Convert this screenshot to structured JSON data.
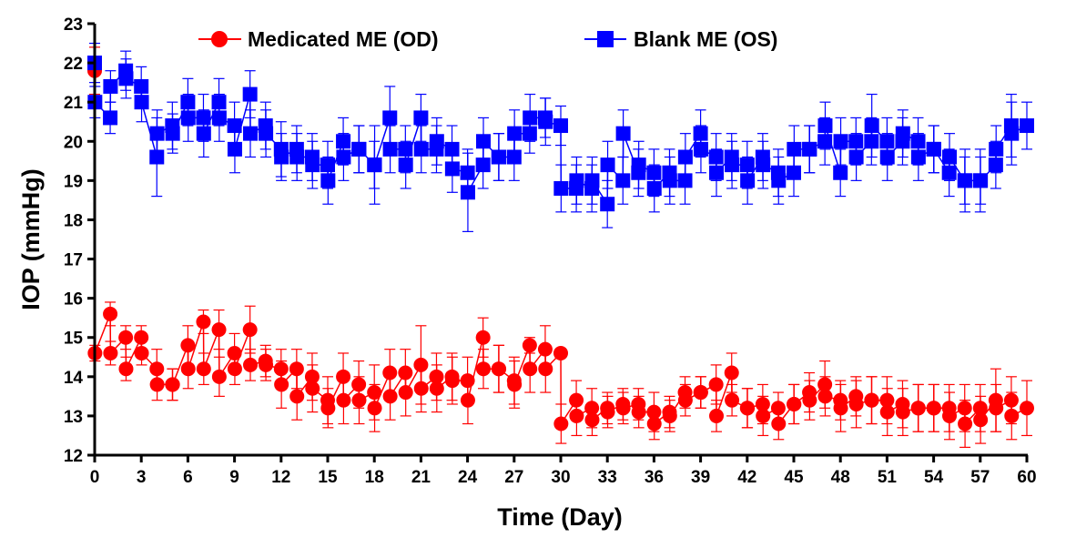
{
  "chart_data": {
    "type": "line",
    "title": "",
    "xlabel": "Time (Day)",
    "ylabel": "IOP (mmHg)",
    "xlim": [
      0,
      60
    ],
    "ylim": [
      12,
      23
    ],
    "xticks": [
      0,
      3,
      6,
      9,
      12,
      15,
      18,
      21,
      24,
      27,
      30,
      33,
      36,
      39,
      42,
      45,
      48,
      51,
      54,
      57,
      60
    ],
    "yticks": [
      12,
      13,
      14,
      15,
      16,
      17,
      18,
      19,
      20,
      21,
      22,
      23
    ],
    "grid": false,
    "legend": "top",
    "series": [
      {
        "name": "Medicated ME (OD)",
        "color": "#ff0000",
        "marker": "circle",
        "x": [
          0,
          0.02,
          1,
          1.02,
          2,
          2.02,
          3,
          3.02,
          4,
          4.02,
          5,
          5.02,
          6,
          6.02,
          7,
          7.02,
          8,
          8.02,
          9,
          9.02,
          10,
          10.02,
          11,
          11.02,
          12,
          12.02,
          13,
          13.02,
          14,
          14.02,
          15,
          15.02,
          16,
          16.02,
          17,
          17.02,
          18,
          18.02,
          19,
          19.02,
          20,
          20.02,
          21,
          21.02,
          22,
          22.02,
          23,
          23.02,
          24,
          24.02,
          25,
          25.02,
          26,
          26.02,
          27,
          27.02,
          28,
          28.02,
          29,
          29.02,
          30,
          30.02,
          31,
          31.02,
          32,
          32.02,
          33,
          33.02,
          34,
          34.02,
          35,
          35.02,
          36,
          36.02,
          37,
          37.02,
          38,
          38.02,
          39,
          39.02,
          40,
          40.02,
          41,
          41.02,
          42,
          42.02,
          43,
          43.02,
          44,
          44.02,
          45,
          45.02,
          46,
          46.02,
          47,
          47.02,
          48,
          48.02,
          49,
          49.02,
          50,
          50.02,
          51,
          51.02,
          52,
          52.02,
          53,
          53.02,
          54,
          54.02,
          55,
          55.02,
          56,
          56.02,
          57,
          57.02,
          58,
          58.02,
          59,
          59.02,
          60
        ],
        "y": [
          21.8,
          14.6,
          15.6,
          14.6,
          15.0,
          14.2,
          15.0,
          14.6,
          14.2,
          13.8,
          13.8,
          13.8,
          14.8,
          14.2,
          15.4,
          14.2,
          15.2,
          14.0,
          14.6,
          14.2,
          15.2,
          14.3,
          14.4,
          14.3,
          14.2,
          13.8,
          14.2,
          13.5,
          14.0,
          13.7,
          13.4,
          13.2,
          14.0,
          13.4,
          13.8,
          13.4,
          13.6,
          13.2,
          14.1,
          13.5,
          14.1,
          13.6,
          14.3,
          13.7,
          14.0,
          13.7,
          14.0,
          13.9,
          13.9,
          13.4,
          15.0,
          14.2,
          14.2,
          14.2,
          13.9,
          13.8,
          14.8,
          14.2,
          14.7,
          14.2,
          14.6,
          12.8,
          13.4,
          13.0,
          13.2,
          12.9,
          13.2,
          13.1,
          13.3,
          13.2,
          13.3,
          13.1,
          13.1,
          12.8,
          13.1,
          13.0,
          13.6,
          13.4,
          13.6,
          13.6,
          13.8,
          13.0,
          14.1,
          13.4,
          13.2,
          13.2,
          13.3,
          13.0,
          13.2,
          12.8,
          13.3,
          13.3,
          13.6,
          13.4,
          13.8,
          13.5,
          13.4,
          13.2,
          13.5,
          13.3,
          13.4,
          13.4,
          13.4,
          13.1,
          13.3,
          13.1,
          13.2,
          13.2,
          13.2,
          13.2,
          13.2,
          13.0,
          13.2,
          12.8,
          13.2,
          12.9,
          13.4,
          13.2,
          13.4,
          13.0,
          13.2
        ],
        "error": [
          0.6,
          0.2,
          0.3,
          0.3,
          0.3,
          0.3,
          0.3,
          0.3,
          0.5,
          0.4,
          0.4,
          0.4,
          0.5,
          0.5,
          0.3,
          0.4,
          0.5,
          0.5,
          0.5,
          0.4,
          0.6,
          0.4,
          0.4,
          0.4,
          0.5,
          0.6,
          0.5,
          0.6,
          0.6,
          0.6,
          0.6,
          0.5,
          0.6,
          0.6,
          0.6,
          0.6,
          0.7,
          0.6,
          0.6,
          0.6,
          0.6,
          0.6,
          1.0,
          0.6,
          0.6,
          0.6,
          0.6,
          0.6,
          0.6,
          0.6,
          0.5,
          0.5,
          0.6,
          0.6,
          0.6,
          0.6,
          0.2,
          0.6,
          0.6,
          0.6,
          0.1,
          0.5,
          0.5,
          0.5,
          0.5,
          0.4,
          0.4,
          0.4,
          0.4,
          0.4,
          0.4,
          0.4,
          0.5,
          0.4,
          0.4,
          0.4,
          0.4,
          0.4,
          0.4,
          0.4,
          0.5,
          0.4,
          0.5,
          0.4,
          0.5,
          0.5,
          0.5,
          0.5,
          0.4,
          0.4,
          0.5,
          0.5,
          0.5,
          0.5,
          0.6,
          0.5,
          0.5,
          0.6,
          0.5,
          0.6,
          0.6,
          0.6,
          0.6,
          0.6,
          0.6,
          0.6,
          0.6,
          0.6,
          0.6,
          0.6,
          0.6,
          0.6,
          0.6,
          0.6,
          0.6,
          0.6,
          0.8,
          0.6,
          0.6,
          0.6,
          0.7
        ]
      },
      {
        "name": "Blank ME (OS)",
        "color": "#0000ff",
        "marker": "square",
        "x": [
          0,
          0.02,
          1,
          1.02,
          2,
          2.02,
          3,
          3.02,
          4,
          4.02,
          5,
          5.02,
          6,
          6.02,
          7,
          7.02,
          8,
          8.02,
          9,
          9.02,
          10,
          10.02,
          11,
          11.02,
          12,
          12.02,
          13,
          13.02,
          14,
          14.02,
          15,
          15.02,
          16,
          16.02,
          17,
          17.02,
          18,
          18.02,
          19,
          19.02,
          20,
          20.02,
          21,
          21.02,
          22,
          22.02,
          23,
          23.02,
          24,
          24.02,
          25,
          25.02,
          26,
          26.02,
          27,
          27.02,
          28,
          28.02,
          29,
          29.02,
          30,
          30.02,
          31,
          31.02,
          32,
          32.02,
          33,
          33.02,
          34,
          34.02,
          35,
          35.02,
          36,
          36.02,
          37,
          37.02,
          38,
          38.02,
          39,
          39.02,
          40,
          40.02,
          41,
          41.02,
          42,
          42.02,
          43,
          43.02,
          44,
          44.02,
          45,
          45.02,
          46,
          46.02,
          47,
          47.02,
          48,
          48.02,
          49,
          49.02,
          50,
          50.02,
          51,
          51.02,
          52,
          52.02,
          53,
          53.02,
          54,
          54.02,
          55,
          55.02,
          56,
          56.02,
          57,
          57.02,
          58,
          58.02,
          59,
          59.02,
          60
        ],
        "y": [
          22.0,
          21.0,
          20.6,
          21.4,
          21.8,
          21.6,
          21.4,
          21.0,
          19.6,
          20.2,
          20.4,
          20.2,
          21.0,
          20.6,
          20.6,
          20.2,
          21.0,
          20.6,
          20.4,
          19.8,
          21.2,
          20.2,
          20.4,
          20.2,
          19.8,
          19.6,
          19.8,
          19.6,
          19.6,
          19.4,
          19.4,
          19.0,
          20.0,
          19.6,
          19.8,
          19.8,
          19.4,
          19.4,
          20.6,
          19.8,
          19.8,
          19.4,
          20.6,
          19.8,
          19.8,
          20.0,
          19.8,
          19.3,
          19.2,
          18.7,
          19.4,
          20.0,
          19.6,
          19.6,
          19.6,
          20.2,
          20.2,
          20.6,
          20.6,
          20.5,
          20.4,
          18.8,
          18.8,
          19.0,
          18.8,
          19.0,
          18.4,
          19.4,
          19.0,
          20.2,
          19.2,
          19.4,
          19.2,
          18.8,
          19.2,
          19.0,
          19.0,
          19.6,
          20.2,
          19.8,
          19.6,
          19.2,
          19.6,
          19.4,
          19.4,
          19.0,
          19.6,
          19.4,
          19.2,
          19.0,
          19.2,
          19.8,
          19.8,
          19.8,
          20.0,
          20.4,
          19.2,
          20.0,
          20.0,
          19.6,
          20.0,
          20.4,
          20.0,
          19.6,
          20.0,
          20.2,
          20.0,
          19.6,
          19.8,
          19.8,
          19.2,
          19.6,
          19.0,
          19.0,
          19.0,
          19.0,
          19.4,
          19.8,
          20.4,
          20.2,
          20.4
        ],
        "error": [
          0.5,
          0.4,
          0.4,
          0.4,
          0.5,
          0.5,
          0.5,
          0.5,
          1.0,
          0.6,
          0.6,
          0.5,
          0.6,
          0.6,
          0.6,
          0.6,
          0.6,
          0.6,
          0.6,
          0.6,
          0.6,
          0.6,
          0.6,
          0.6,
          0.7,
          0.6,
          0.6,
          0.6,
          0.6,
          0.6,
          0.6,
          0.6,
          0.6,
          0.6,
          0.6,
          0.6,
          0.6,
          1.0,
          0.8,
          0.6,
          0.6,
          0.6,
          0.6,
          0.6,
          0.6,
          0.6,
          0.6,
          0.6,
          0.6,
          1.0,
          0.6,
          0.6,
          0.6,
          0.6,
          0.6,
          0.6,
          0.5,
          0.6,
          0.5,
          0.6,
          0.5,
          0.6,
          0.6,
          0.6,
          0.6,
          0.6,
          0.6,
          0.6,
          0.6,
          0.6,
          0.6,
          0.6,
          0.6,
          0.6,
          0.6,
          0.6,
          0.6,
          0.6,
          0.6,
          0.6,
          0.6,
          0.6,
          0.6,
          0.6,
          0.6,
          0.6,
          0.6,
          0.6,
          0.6,
          0.6,
          0.6,
          0.6,
          0.6,
          0.6,
          0.6,
          0.6,
          0.6,
          0.6,
          0.6,
          0.6,
          0.6,
          0.8,
          0.6,
          0.6,
          0.6,
          0.6,
          0.6,
          0.6,
          0.6,
          0.6,
          0.6,
          0.6,
          0.6,
          0.8,
          0.8,
          0.6,
          0.6,
          0.6,
          0.8,
          0.8,
          0.6
        ]
      }
    ]
  }
}
